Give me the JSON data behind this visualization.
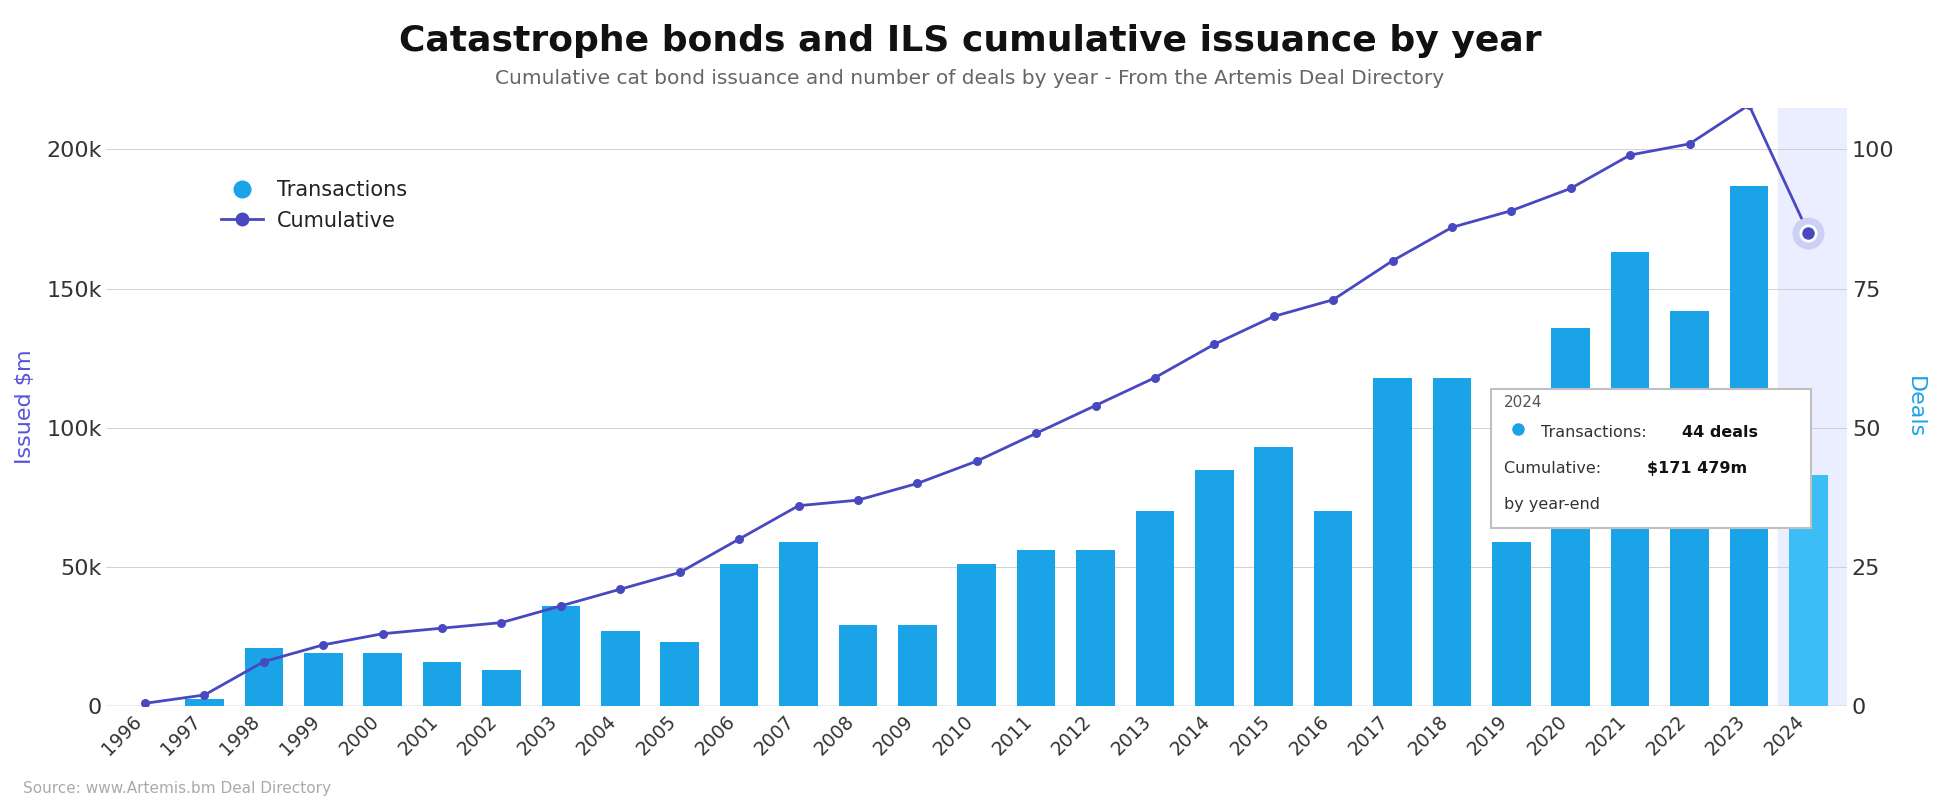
{
  "title": "Catastrophe bonds and ILS cumulative issuance by year",
  "subtitle": "Cumulative cat bond issuance and number of deals by year - From the Artemis Deal Directory",
  "source": "Source: www.Artemis.bm Deal Directory",
  "years": [
    1996,
    1997,
    1998,
    1999,
    2000,
    2001,
    2002,
    2003,
    2004,
    2005,
    2006,
    2007,
    2008,
    2009,
    2010,
    2011,
    2012,
    2013,
    2014,
    2015,
    2016,
    2017,
    2018,
    2019,
    2020,
    2021,
    2022,
    2023,
    2024
  ],
  "bar_values": [
    200,
    2700,
    21000,
    19000,
    19000,
    16000,
    13000,
    36000,
    27000,
    23000,
    51000,
    59000,
    29000,
    29000,
    51000,
    56000,
    56000,
    70000,
    85000,
    93000,
    70000,
    118000,
    118000,
    59000,
    136000,
    163000,
    142000,
    187000,
    83000
  ],
  "cumulative_line": [
    0.5,
    2,
    8,
    11,
    13,
    14,
    15,
    18,
    21,
    24,
    30,
    36,
    37,
    40,
    44,
    49,
    54,
    59,
    65,
    70,
    73,
    80,
    86,
    89,
    93,
    99,
    101,
    108,
    85
  ],
  "bar_color": "#1ba3e8",
  "bar_color_last": "#3bbef5",
  "line_color": "#4848c0",
  "marker_color": "#4848c0",
  "last_bar_bg": "#eaeeff",
  "ylabel_left": "Issued $m",
  "ylabel_right": "Deals",
  "ylabel_left_color": "#5555dd",
  "ylabel_right_color": "#1ba3e8",
  "ylim_left": [
    0,
    215000
  ],
  "ylim_right": [
    0,
    107.5
  ],
  "yticks_left": [
    0,
    50000,
    100000,
    150000,
    200000
  ],
  "ytick_labels_left": [
    "0",
    "50k",
    "100k",
    "150k",
    "200k"
  ],
  "yticks_right": [
    0,
    25,
    50,
    75,
    100
  ],
  "legend_transactions_color": "#1ba3e8",
  "legend_cumulative_color": "#4848c0",
  "tooltip_transactions": "44 deals",
  "tooltip_cumulative": "$171 479m",
  "background_color": "#ffffff",
  "grid_color": "#d0d0d0"
}
